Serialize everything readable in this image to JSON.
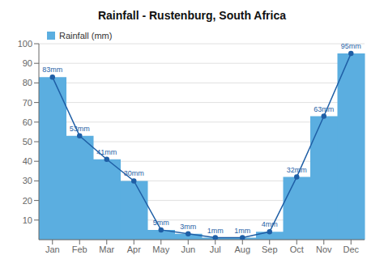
{
  "chart_data": {
    "type": "bar",
    "title": "Rainfall - Rustenburg, South Africa",
    "categories": [
      "Jan",
      "Feb",
      "Mar",
      "Apr",
      "May",
      "Jun",
      "Jul",
      "Aug",
      "Sep",
      "Oct",
      "Nov",
      "Dec"
    ],
    "series": [
      {
        "name": "Rainfall (mm)",
        "type": "bar",
        "color": "#5baee0",
        "values": [
          83,
          53,
          41,
          30,
          5,
          3,
          1,
          1,
          4,
          32,
          63,
          95
        ]
      },
      {
        "type": "line",
        "color": "#1f5fa6",
        "marker": "circle",
        "values": [
          83,
          53,
          41,
          30,
          5,
          3,
          1,
          1,
          4,
          32,
          63,
          95
        ],
        "value_labels": [
          "83mm",
          "53mm",
          "41mm",
          "30mm",
          "5mm",
          "3mm",
          "1mm",
          "1mm",
          "4mm",
          "32mm",
          "63mm",
          "95mm"
        ]
      }
    ],
    "ylim": [
      0,
      100
    ],
    "yticks": [
      10,
      20,
      30,
      40,
      50,
      60,
      70,
      80,
      90,
      100
    ],
    "grid": true,
    "legend": "upper left",
    "data_labels": true
  }
}
